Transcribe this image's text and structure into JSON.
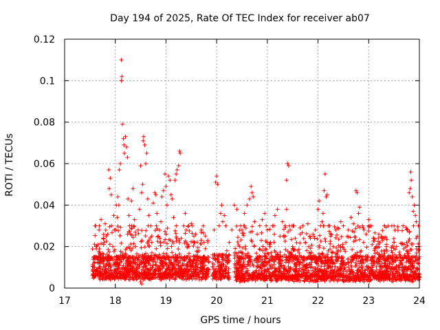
{
  "chart_data": {
    "type": "scatter",
    "title": "Day 194 of 2025, Rate Of TEC Index for receiver ab07",
    "xlabel": "GPS time / hours",
    "ylabel": "ROTI / TECUs",
    "xlim": [
      17,
      24
    ],
    "ylim": [
      0,
      0.12
    ],
    "x_ticks": [
      17,
      18,
      19,
      20,
      21,
      22,
      23,
      24
    ],
    "y_ticks": [
      0,
      0.02,
      0.04,
      0.06,
      0.08,
      0.1,
      0.12
    ],
    "x_tick_labels": [
      "17",
      "18",
      "19",
      "20",
      "21",
      "22",
      "23",
      "24"
    ],
    "y_tick_labels": [
      "0",
      "0.02",
      "0.04",
      "0.06",
      "0.08",
      "0.1",
      "0.12"
    ],
    "grid": true,
    "marker": "+",
    "marker_color": "#ff0000",
    "series": [
      {
        "name": "ROTI",
        "points": [
          [
            17.55,
            0.006
          ],
          [
            17.58,
            0.012
          ],
          [
            17.6,
            0.03
          ],
          [
            17.62,
            0.02
          ],
          [
            17.65,
            0.008
          ],
          [
            17.68,
            0.028
          ],
          [
            17.7,
            0.015
          ],
          [
            17.72,
            0.033
          ],
          [
            17.75,
            0.009
          ],
          [
            17.78,
            0.022
          ],
          [
            17.8,
            0.031
          ],
          [
            17.82,
            0.011
          ],
          [
            17.85,
            0.026
          ],
          [
            17.87,
            0.057
          ],
          [
            17.88,
            0.048
          ],
          [
            17.9,
            0.053
          ],
          [
            17.92,
            0.045
          ],
          [
            17.95,
            0.02
          ],
          [
            17.97,
            0.035
          ],
          [
            17.98,
            0.028
          ],
          [
            18.0,
            0.012
          ],
          [
            18.02,
            0.04
          ],
          [
            18.04,
            0.034
          ],
          [
            18.05,
            0.044
          ],
          [
            18.07,
            0.04
          ],
          [
            18.08,
            0.057
          ],
          [
            18.1,
            0.06
          ],
          [
            18.12,
            0.11
          ],
          [
            18.13,
            0.102
          ],
          [
            18.12,
            0.1
          ],
          [
            18.14,
            0.079
          ],
          [
            18.16,
            0.072
          ],
          [
            18.17,
            0.069
          ],
          [
            18.18,
            0.065
          ],
          [
            18.2,
            0.073
          ],
          [
            18.22,
            0.068
          ],
          [
            18.24,
            0.063
          ],
          [
            18.25,
            0.043
          ],
          [
            18.27,
            0.035
          ],
          [
            18.28,
            0.03
          ],
          [
            18.3,
            0.026
          ],
          [
            18.32,
            0.042
          ],
          [
            18.35,
            0.048
          ],
          [
            18.38,
            0.033
          ],
          [
            18.4,
            0.02
          ],
          [
            18.42,
            0.015
          ],
          [
            18.45,
            0.028
          ],
          [
            18.48,
            0.038
          ],
          [
            18.5,
            0.059
          ],
          [
            18.52,
            0.046
          ],
          [
            18.54,
            0.05
          ],
          [
            18.55,
            0.071
          ],
          [
            18.56,
            0.073
          ],
          [
            18.58,
            0.069
          ],
          [
            18.6,
            0.06
          ],
          [
            18.62,
            0.065
          ],
          [
            18.64,
            0.043
          ],
          [
            18.66,
            0.035
          ],
          [
            18.7,
            0.03
          ],
          [
            18.72,
            0.022
          ],
          [
            18.75,
            0.041
          ],
          [
            18.78,
            0.046
          ],
          [
            18.8,
            0.045
          ],
          [
            18.82,
            0.036
          ],
          [
            18.85,
            0.025
          ],
          [
            18.88,
            0.024
          ],
          [
            18.9,
            0.032
          ],
          [
            18.92,
            0.044
          ],
          [
            18.95,
            0.047
          ],
          [
            18.98,
            0.055
          ],
          [
            19.0,
            0.049
          ],
          [
            19.02,
            0.04
          ],
          [
            19.05,
            0.054
          ],
          [
            19.08,
            0.052
          ],
          [
            19.1,
            0.045
          ],
          [
            19.12,
            0.043
          ],
          [
            19.15,
            0.034
          ],
          [
            19.18,
            0.052
          ],
          [
            19.2,
            0.055
          ],
          [
            19.22,
            0.057
          ],
          [
            19.25,
            0.059
          ],
          [
            19.27,
            0.066
          ],
          [
            19.28,
            0.065
          ],
          [
            19.3,
            0.024
          ],
          [
            19.32,
            0.014
          ],
          [
            19.35,
            0.03
          ],
          [
            19.38,
            0.036
          ],
          [
            19.4,
            0.028
          ],
          [
            19.45,
            0.02
          ],
          [
            19.5,
            0.031
          ],
          [
            19.55,
            0.025
          ],
          [
            19.6,
            0.012
          ],
          [
            19.65,
            0.018
          ],
          [
            19.7,
            0.028
          ],
          [
            19.75,
            0.022
          ],
          [
            19.8,
            0.009
          ],
          [
            19.92,
            0.012
          ],
          [
            19.95,
            0.028
          ],
          [
            19.98,
            0.051
          ],
          [
            20.0,
            0.054
          ],
          [
            20.02,
            0.05
          ],
          [
            20.05,
            0.03
          ],
          [
            20.08,
            0.036
          ],
          [
            20.1,
            0.04
          ],
          [
            20.12,
            0.032
          ],
          [
            20.15,
            0.035
          ],
          [
            20.18,
            0.03
          ],
          [
            20.2,
            0.018
          ],
          [
            20.25,
            0.022
          ],
          [
            20.3,
            0.028
          ],
          [
            20.35,
            0.04
          ],
          [
            20.4,
            0.038
          ],
          [
            20.45,
            0.02
          ],
          [
            20.5,
            0.028
          ],
          [
            20.55,
            0.036
          ],
          [
            20.6,
            0.04
          ],
          [
            20.65,
            0.043
          ],
          [
            20.68,
            0.049
          ],
          [
            20.7,
            0.046
          ],
          [
            20.72,
            0.044
          ],
          [
            20.75,
            0.032
          ],
          [
            20.8,
            0.026
          ],
          [
            20.85,
            0.03
          ],
          [
            20.9,
            0.033
          ],
          [
            20.95,
            0.036
          ],
          [
            21.0,
            0.028
          ],
          [
            21.05,
            0.02
          ],
          [
            21.1,
            0.03
          ],
          [
            21.15,
            0.035
          ],
          [
            21.2,
            0.038
          ],
          [
            21.25,
            0.025
          ],
          [
            21.3,
            0.032
          ],
          [
            21.35,
            0.03
          ],
          [
            21.38,
            0.052
          ],
          [
            21.4,
            0.06
          ],
          [
            21.42,
            0.059
          ],
          [
            21.38,
            0.038
          ],
          [
            21.45,
            0.028
          ],
          [
            21.5,
            0.02
          ],
          [
            21.55,
            0.024
          ],
          [
            21.6,
            0.018
          ],
          [
            21.65,
            0.026
          ],
          [
            21.7,
            0.03
          ],
          [
            21.75,
            0.022
          ],
          [
            21.8,
            0.031
          ],
          [
            21.85,
            0.024
          ],
          [
            21.9,
            0.026
          ],
          [
            21.95,
            0.028
          ],
          [
            22.0,
            0.038
          ],
          [
            22.02,
            0.042
          ],
          [
            22.05,
            0.03
          ],
          [
            22.08,
            0.032
          ],
          [
            22.1,
            0.036
          ],
          [
            22.12,
            0.047
          ],
          [
            22.14,
            0.055
          ],
          [
            22.16,
            0.044
          ],
          [
            22.18,
            0.045
          ],
          [
            22.2,
            0.03
          ],
          [
            22.25,
            0.025
          ],
          [
            22.3,
            0.02
          ],
          [
            22.35,
            0.028
          ],
          [
            22.4,
            0.018
          ],
          [
            22.45,
            0.032
          ],
          [
            22.5,
            0.03
          ],
          [
            22.55,
            0.022
          ],
          [
            22.6,
            0.028
          ],
          [
            22.65,
            0.034
          ],
          [
            22.7,
            0.031
          ],
          [
            22.75,
            0.047
          ],
          [
            22.77,
            0.046
          ],
          [
            22.8,
            0.036
          ],
          [
            22.82,
            0.039
          ],
          [
            22.85,
            0.018
          ],
          [
            22.9,
            0.022
          ],
          [
            22.95,
            0.026
          ],
          [
            23.0,
            0.033
          ],
          [
            23.05,
            0.03
          ],
          [
            23.1,
            0.024
          ],
          [
            23.15,
            0.02
          ],
          [
            23.2,
            0.026
          ],
          [
            23.25,
            0.025
          ],
          [
            23.3,
            0.018
          ],
          [
            23.35,
            0.02
          ],
          [
            23.4,
            0.014
          ],
          [
            23.45,
            0.018
          ],
          [
            23.5,
            0.022
          ],
          [
            23.55,
            0.02
          ],
          [
            23.6,
            0.016
          ],
          [
            23.65,
            0.012
          ],
          [
            23.7,
            0.015
          ],
          [
            23.75,
            0.022
          ],
          [
            23.8,
            0.046
          ],
          [
            23.82,
            0.048
          ],
          [
            23.83,
            0.056
          ],
          [
            23.84,
            0.052
          ],
          [
            23.86,
            0.044
          ],
          [
            23.88,
            0.037
          ],
          [
            23.9,
            0.04
          ],
          [
            23.92,
            0.035
          ],
          [
            23.94,
            0.032
          ],
          [
            23.96,
            0.025
          ],
          [
            23.98,
            0.03
          ],
          [
            24.0,
            0.02
          ],
          [
            18.5,
            0.003
          ],
          [
            18.52,
            0.002
          ],
          [
            18.55,
            0.004
          ],
          [
            17.6,
            0.007
          ],
          [
            17.7,
            0.004
          ],
          [
            17.8,
            0.006
          ],
          [
            17.9,
            0.01
          ],
          [
            18.0,
            0.005
          ],
          [
            18.1,
            0.008
          ],
          [
            18.2,
            0.006
          ],
          [
            18.3,
            0.009
          ],
          [
            18.4,
            0.007
          ],
          [
            18.6,
            0.006
          ],
          [
            18.7,
            0.004
          ],
          [
            18.8,
            0.008
          ],
          [
            18.9,
            0.006
          ],
          [
            19.0,
            0.005
          ],
          [
            19.1,
            0.009
          ],
          [
            19.2,
            0.007
          ],
          [
            19.3,
            0.006
          ],
          [
            19.4,
            0.004
          ],
          [
            19.5,
            0.008
          ],
          [
            19.6,
            0.006
          ],
          [
            19.7,
            0.005
          ],
          [
            19.8,
            0.007
          ],
          [
            20.0,
            0.004
          ],
          [
            20.1,
            0.006
          ],
          [
            20.4,
            0.008
          ],
          [
            20.5,
            0.005
          ],
          [
            20.6,
            0.007
          ],
          [
            20.7,
            0.004
          ],
          [
            20.8,
            0.006
          ],
          [
            20.9,
            0.005
          ],
          [
            21.0,
            0.008
          ],
          [
            21.1,
            0.006
          ],
          [
            21.2,
            0.004
          ],
          [
            21.3,
            0.007
          ],
          [
            21.4,
            0.005
          ],
          [
            21.5,
            0.006
          ],
          [
            21.6,
            0.004
          ],
          [
            21.7,
            0.007
          ],
          [
            21.8,
            0.005
          ],
          [
            21.9,
            0.006
          ],
          [
            22.0,
            0.004
          ],
          [
            22.1,
            0.007
          ],
          [
            22.2,
            0.005
          ],
          [
            22.3,
            0.006
          ],
          [
            22.4,
            0.004
          ],
          [
            22.5,
            0.008
          ],
          [
            22.6,
            0.005
          ],
          [
            22.7,
            0.006
          ],
          [
            22.8,
            0.004
          ],
          [
            22.9,
            0.007
          ],
          [
            23.0,
            0.005
          ],
          [
            23.1,
            0.006
          ],
          [
            23.2,
            0.004
          ],
          [
            23.3,
            0.007
          ],
          [
            23.4,
            0.005
          ],
          [
            23.5,
            0.006
          ],
          [
            23.6,
            0.004
          ],
          [
            23.7,
            0.007
          ],
          [
            23.8,
            0.005
          ],
          [
            23.9,
            0.006
          ],
          [
            24.0,
            0.005
          ]
        ],
        "dense_segments": [
          {
            "x_range": [
              17.55,
              19.85
            ],
            "y_range": [
              0.004,
              0.015
            ],
            "count": 900
          },
          {
            "x_range": [
              19.92,
              20.25
            ],
            "y_range": [
              0.004,
              0.016
            ],
            "count": 150
          },
          {
            "x_range": [
              20.35,
              24.0
            ],
            "y_range": [
              0.003,
              0.015
            ],
            "count": 1400
          },
          {
            "x_range": [
              17.55,
              19.85
            ],
            "y_range": [
              0.012,
              0.03
            ],
            "count": 260
          },
          {
            "x_range": [
              20.35,
              24.0
            ],
            "y_range": [
              0.012,
              0.03
            ],
            "count": 380
          }
        ]
      }
    ]
  }
}
